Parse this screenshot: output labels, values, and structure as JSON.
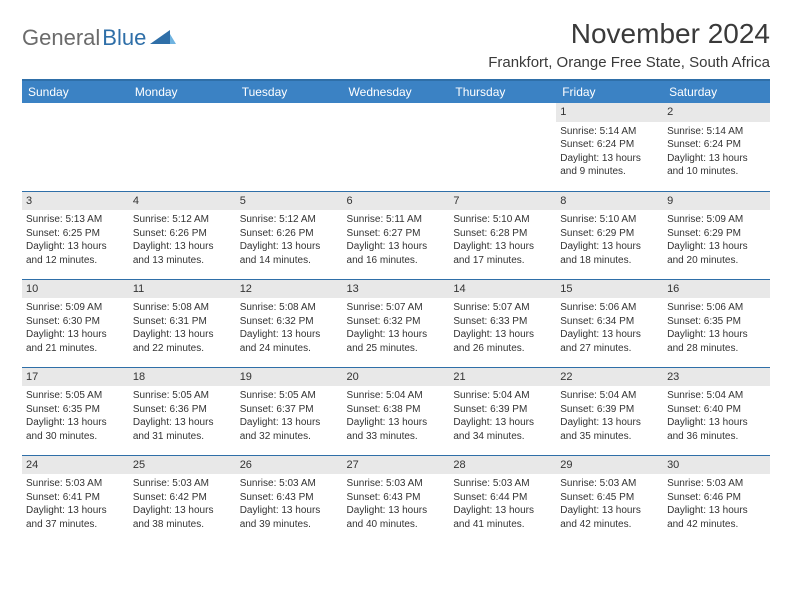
{
  "brand": {
    "part1": "General",
    "part2": "Blue"
  },
  "title": "November 2024",
  "location": "Frankfort, Orange Free State, South Africa",
  "header_color": "#3b82c4",
  "rule_color": "#2f6fa8",
  "band_color": "#e8e8e8",
  "day_headers": [
    "Sunday",
    "Monday",
    "Tuesday",
    "Wednesday",
    "Thursday",
    "Friday",
    "Saturday"
  ],
  "weeks": [
    [
      null,
      null,
      null,
      null,
      null,
      {
        "n": "1",
        "sunrise": "5:14 AM",
        "sunset": "6:24 PM",
        "daylight": "13 hours and 9 minutes."
      },
      {
        "n": "2",
        "sunrise": "5:14 AM",
        "sunset": "6:24 PM",
        "daylight": "13 hours and 10 minutes."
      }
    ],
    [
      {
        "n": "3",
        "sunrise": "5:13 AM",
        "sunset": "6:25 PM",
        "daylight": "13 hours and 12 minutes."
      },
      {
        "n": "4",
        "sunrise": "5:12 AM",
        "sunset": "6:26 PM",
        "daylight": "13 hours and 13 minutes."
      },
      {
        "n": "5",
        "sunrise": "5:12 AM",
        "sunset": "6:26 PM",
        "daylight": "13 hours and 14 minutes."
      },
      {
        "n": "6",
        "sunrise": "5:11 AM",
        "sunset": "6:27 PM",
        "daylight": "13 hours and 16 minutes."
      },
      {
        "n": "7",
        "sunrise": "5:10 AM",
        "sunset": "6:28 PM",
        "daylight": "13 hours and 17 minutes."
      },
      {
        "n": "8",
        "sunrise": "5:10 AM",
        "sunset": "6:29 PM",
        "daylight": "13 hours and 18 minutes."
      },
      {
        "n": "9",
        "sunrise": "5:09 AM",
        "sunset": "6:29 PM",
        "daylight": "13 hours and 20 minutes."
      }
    ],
    [
      {
        "n": "10",
        "sunrise": "5:09 AM",
        "sunset": "6:30 PM",
        "daylight": "13 hours and 21 minutes."
      },
      {
        "n": "11",
        "sunrise": "5:08 AM",
        "sunset": "6:31 PM",
        "daylight": "13 hours and 22 minutes."
      },
      {
        "n": "12",
        "sunrise": "5:08 AM",
        "sunset": "6:32 PM",
        "daylight": "13 hours and 24 minutes."
      },
      {
        "n": "13",
        "sunrise": "5:07 AM",
        "sunset": "6:32 PM",
        "daylight": "13 hours and 25 minutes."
      },
      {
        "n": "14",
        "sunrise": "5:07 AM",
        "sunset": "6:33 PM",
        "daylight": "13 hours and 26 minutes."
      },
      {
        "n": "15",
        "sunrise": "5:06 AM",
        "sunset": "6:34 PM",
        "daylight": "13 hours and 27 minutes."
      },
      {
        "n": "16",
        "sunrise": "5:06 AM",
        "sunset": "6:35 PM",
        "daylight": "13 hours and 28 minutes."
      }
    ],
    [
      {
        "n": "17",
        "sunrise": "5:05 AM",
        "sunset": "6:35 PM",
        "daylight": "13 hours and 30 minutes."
      },
      {
        "n": "18",
        "sunrise": "5:05 AM",
        "sunset": "6:36 PM",
        "daylight": "13 hours and 31 minutes."
      },
      {
        "n": "19",
        "sunrise": "5:05 AM",
        "sunset": "6:37 PM",
        "daylight": "13 hours and 32 minutes."
      },
      {
        "n": "20",
        "sunrise": "5:04 AM",
        "sunset": "6:38 PM",
        "daylight": "13 hours and 33 minutes."
      },
      {
        "n": "21",
        "sunrise": "5:04 AM",
        "sunset": "6:39 PM",
        "daylight": "13 hours and 34 minutes."
      },
      {
        "n": "22",
        "sunrise": "5:04 AM",
        "sunset": "6:39 PM",
        "daylight": "13 hours and 35 minutes."
      },
      {
        "n": "23",
        "sunrise": "5:04 AM",
        "sunset": "6:40 PM",
        "daylight": "13 hours and 36 minutes."
      }
    ],
    [
      {
        "n": "24",
        "sunrise": "5:03 AM",
        "sunset": "6:41 PM",
        "daylight": "13 hours and 37 minutes."
      },
      {
        "n": "25",
        "sunrise": "5:03 AM",
        "sunset": "6:42 PM",
        "daylight": "13 hours and 38 minutes."
      },
      {
        "n": "26",
        "sunrise": "5:03 AM",
        "sunset": "6:43 PM",
        "daylight": "13 hours and 39 minutes."
      },
      {
        "n": "27",
        "sunrise": "5:03 AM",
        "sunset": "6:43 PM",
        "daylight": "13 hours and 40 minutes."
      },
      {
        "n": "28",
        "sunrise": "5:03 AM",
        "sunset": "6:44 PM",
        "daylight": "13 hours and 41 minutes."
      },
      {
        "n": "29",
        "sunrise": "5:03 AM",
        "sunset": "6:45 PM",
        "daylight": "13 hours and 42 minutes."
      },
      {
        "n": "30",
        "sunrise": "5:03 AM",
        "sunset": "6:46 PM",
        "daylight": "13 hours and 42 minutes."
      }
    ]
  ],
  "labels": {
    "sunrise": "Sunrise:",
    "sunset": "Sunset:",
    "daylight": "Daylight:"
  }
}
